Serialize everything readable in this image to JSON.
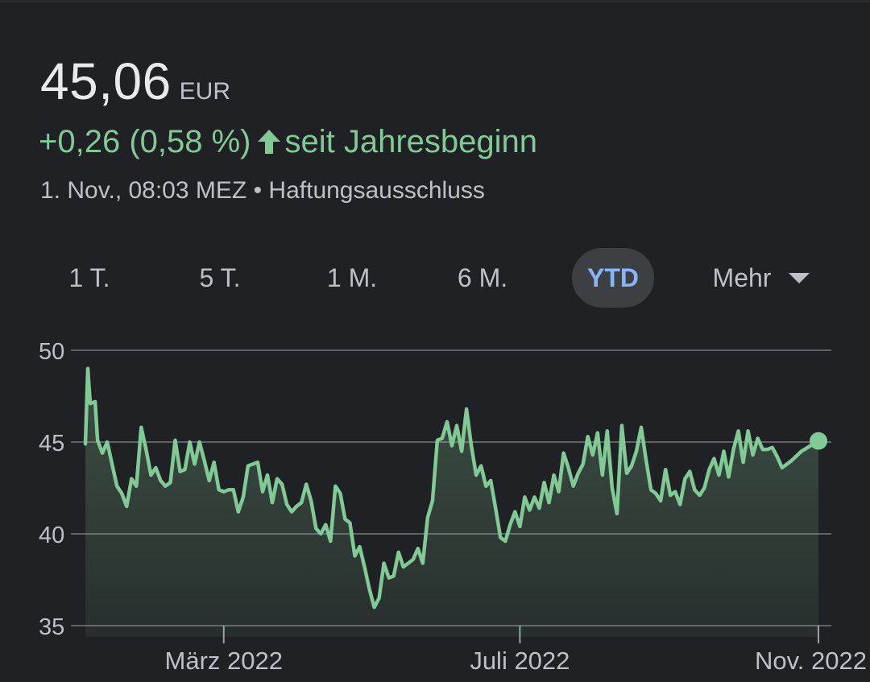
{
  "header": {
    "price": "45,06",
    "currency": "EUR",
    "change": "+0,26 (0,58 %)",
    "period_label": "seit Jahresbeginn",
    "timestamp": "1. Nov., 08:03 MEZ",
    "separator": "•",
    "disclaimer": "Haftungsausschluss"
  },
  "tabs": [
    {
      "label": "1 T.",
      "active": false
    },
    {
      "label": "5 T.",
      "active": false
    },
    {
      "label": "1 M.",
      "active": false
    },
    {
      "label": "6 M.",
      "active": false
    },
    {
      "label": "YTD",
      "active": true
    },
    {
      "label": "Mehr",
      "active": false
    }
  ],
  "colors": {
    "background": "#202124",
    "positive": "#81c995",
    "active_tab_text": "#8ab4f8",
    "active_tab_bg": "#3c4043"
  },
  "chart_data": {
    "type": "area",
    "x_range": [
      "2022-01-03",
      "2022-11-01"
    ],
    "ylim": [
      35,
      50
    ],
    "yticks": [
      35,
      40,
      45,
      50
    ],
    "xticks": [
      {
        "date": "2022-03-01",
        "label": "März 2022"
      },
      {
        "date": "2022-07-01",
        "label": "Juli 2022"
      },
      {
        "date": "2022-11-01",
        "label": "Nov. 2022"
      }
    ],
    "grid": true,
    "series": [
      {
        "points": [
          [
            "2022-01-03",
            44.9
          ],
          [
            "2022-01-04",
            49.0
          ],
          [
            "2022-01-05",
            47.1
          ],
          [
            "2022-01-07",
            47.2
          ],
          [
            "2022-01-08",
            45.1
          ],
          [
            "2022-01-10",
            44.4
          ],
          [
            "2022-01-12",
            45.0
          ],
          [
            "2022-01-14",
            43.8
          ],
          [
            "2022-01-16",
            42.6
          ],
          [
            "2022-01-18",
            42.2
          ],
          [
            "2022-01-20",
            41.5
          ],
          [
            "2022-01-22",
            43.0
          ],
          [
            "2022-01-24",
            42.6
          ],
          [
            "2022-01-26",
            45.8
          ],
          [
            "2022-01-28",
            44.6
          ],
          [
            "2022-01-30",
            43.2
          ],
          [
            "2022-02-01",
            43.6
          ],
          [
            "2022-02-03",
            42.9
          ],
          [
            "2022-02-05",
            42.6
          ],
          [
            "2022-02-07",
            42.8
          ],
          [
            "2022-02-09",
            45.1
          ],
          [
            "2022-02-11",
            43.4
          ],
          [
            "2022-02-13",
            43.5
          ],
          [
            "2022-02-15",
            45.0
          ],
          [
            "2022-02-17",
            43.8
          ],
          [
            "2022-02-19",
            45.0
          ],
          [
            "2022-02-21",
            44.0
          ],
          [
            "2022-02-23",
            42.9
          ],
          [
            "2022-02-25",
            43.9
          ],
          [
            "2022-02-27",
            42.4
          ],
          [
            "2022-03-01",
            42.3
          ],
          [
            "2022-03-03",
            42.4
          ],
          [
            "2022-03-05",
            42.4
          ],
          [
            "2022-03-07",
            41.2
          ],
          [
            "2022-03-09",
            42.0
          ],
          [
            "2022-03-11",
            43.7
          ],
          [
            "2022-03-13",
            43.8
          ],
          [
            "2022-03-15",
            43.9
          ],
          [
            "2022-03-17",
            42.3
          ],
          [
            "2022-03-19",
            43.2
          ],
          [
            "2022-03-21",
            41.7
          ],
          [
            "2022-03-23",
            43.0
          ],
          [
            "2022-03-25",
            42.7
          ],
          [
            "2022-03-27",
            41.6
          ],
          [
            "2022-03-29",
            41.2
          ],
          [
            "2022-03-31",
            41.5
          ],
          [
            "2022-04-02",
            41.7
          ],
          [
            "2022-04-04",
            42.7
          ],
          [
            "2022-04-06",
            41.8
          ],
          [
            "2022-04-08",
            40.3
          ],
          [
            "2022-04-10",
            40.0
          ],
          [
            "2022-04-12",
            40.5
          ],
          [
            "2022-04-14",
            39.6
          ],
          [
            "2022-04-16",
            42.6
          ],
          [
            "2022-04-18",
            42.2
          ],
          [
            "2022-04-20",
            40.8
          ],
          [
            "2022-04-22",
            40.6
          ],
          [
            "2022-04-24",
            38.8
          ],
          [
            "2022-04-26",
            39.3
          ],
          [
            "2022-04-28",
            38.2
          ],
          [
            "2022-04-30",
            37.0
          ],
          [
            "2022-05-02",
            36.0
          ],
          [
            "2022-05-04",
            36.5
          ],
          [
            "2022-05-06",
            38.4
          ],
          [
            "2022-05-08",
            37.6
          ],
          [
            "2022-05-10",
            37.7
          ],
          [
            "2022-05-12",
            39.0
          ],
          [
            "2022-05-14",
            38.2
          ],
          [
            "2022-05-16",
            38.4
          ],
          [
            "2022-05-18",
            38.6
          ],
          [
            "2022-05-20",
            39.2
          ],
          [
            "2022-05-22",
            38.4
          ],
          [
            "2022-05-24",
            40.9
          ],
          [
            "2022-05-26",
            41.8
          ],
          [
            "2022-05-28",
            45.1
          ],
          [
            "2022-05-30",
            45.2
          ],
          [
            "2022-06-01",
            46.1
          ],
          [
            "2022-06-03",
            44.8
          ],
          [
            "2022-06-05",
            45.9
          ],
          [
            "2022-06-07",
            44.5
          ],
          [
            "2022-06-09",
            46.8
          ],
          [
            "2022-06-11",
            44.8
          ],
          [
            "2022-06-13",
            43.2
          ],
          [
            "2022-06-15",
            43.7
          ],
          [
            "2022-06-17",
            42.6
          ],
          [
            "2022-06-19",
            42.9
          ],
          [
            "2022-06-21",
            41.4
          ],
          [
            "2022-06-23",
            39.8
          ],
          [
            "2022-06-25",
            39.6
          ],
          [
            "2022-06-27",
            40.5
          ],
          [
            "2022-06-29",
            41.2
          ],
          [
            "2022-07-01",
            40.4
          ],
          [
            "2022-07-03",
            42.0
          ],
          [
            "2022-07-05",
            41.3
          ],
          [
            "2022-07-07",
            42.0
          ],
          [
            "2022-07-09",
            41.4
          ],
          [
            "2022-07-11",
            42.8
          ],
          [
            "2022-07-13",
            41.7
          ],
          [
            "2022-07-15",
            43.2
          ],
          [
            "2022-07-17",
            42.3
          ],
          [
            "2022-07-19",
            44.4
          ],
          [
            "2022-07-21",
            43.6
          ],
          [
            "2022-07-23",
            42.6
          ],
          [
            "2022-07-25",
            43.3
          ],
          [
            "2022-07-27",
            43.8
          ],
          [
            "2022-07-29",
            45.3
          ],
          [
            "2022-07-31",
            44.3
          ],
          [
            "2022-08-02",
            45.5
          ],
          [
            "2022-08-04",
            43.2
          ],
          [
            "2022-08-06",
            45.6
          ],
          [
            "2022-08-08",
            42.5
          ],
          [
            "2022-08-10",
            41.1
          ],
          [
            "2022-08-12",
            45.9
          ],
          [
            "2022-08-14",
            43.3
          ],
          [
            "2022-08-16",
            43.7
          ],
          [
            "2022-08-18",
            44.5
          ],
          [
            "2022-08-20",
            45.8
          ],
          [
            "2022-08-22",
            44.0
          ],
          [
            "2022-08-24",
            42.4
          ],
          [
            "2022-08-26",
            42.2
          ],
          [
            "2022-08-28",
            41.8
          ],
          [
            "2022-08-30",
            43.5
          ],
          [
            "2022-09-01",
            42.1
          ],
          [
            "2022-09-03",
            42.3
          ],
          [
            "2022-09-05",
            41.6
          ],
          [
            "2022-09-07",
            43.0
          ],
          [
            "2022-09-09",
            43.4
          ],
          [
            "2022-09-11",
            42.4
          ],
          [
            "2022-09-13",
            42.1
          ],
          [
            "2022-09-15",
            42.5
          ],
          [
            "2022-09-17",
            43.5
          ],
          [
            "2022-09-19",
            44.1
          ],
          [
            "2022-09-21",
            43.2
          ],
          [
            "2022-09-23",
            44.5
          ],
          [
            "2022-09-25",
            43.1
          ],
          [
            "2022-09-27",
            44.6
          ],
          [
            "2022-09-29",
            45.6
          ],
          [
            "2022-10-01",
            43.9
          ],
          [
            "2022-10-03",
            45.6
          ],
          [
            "2022-10-05",
            44.3
          ],
          [
            "2022-10-07",
            45.2
          ],
          [
            "2022-10-09",
            44.6
          ],
          [
            "2022-10-11",
            44.6
          ],
          [
            "2022-10-13",
            44.7
          ],
          [
            "2022-10-15",
            44.2
          ],
          [
            "2022-10-17",
            43.6
          ],
          [
            "2022-10-19",
            43.8
          ],
          [
            "2022-10-21",
            44.0
          ],
          [
            "2022-10-25",
            44.5
          ],
          [
            "2022-11-01",
            45.06
          ]
        ]
      }
    ]
  }
}
